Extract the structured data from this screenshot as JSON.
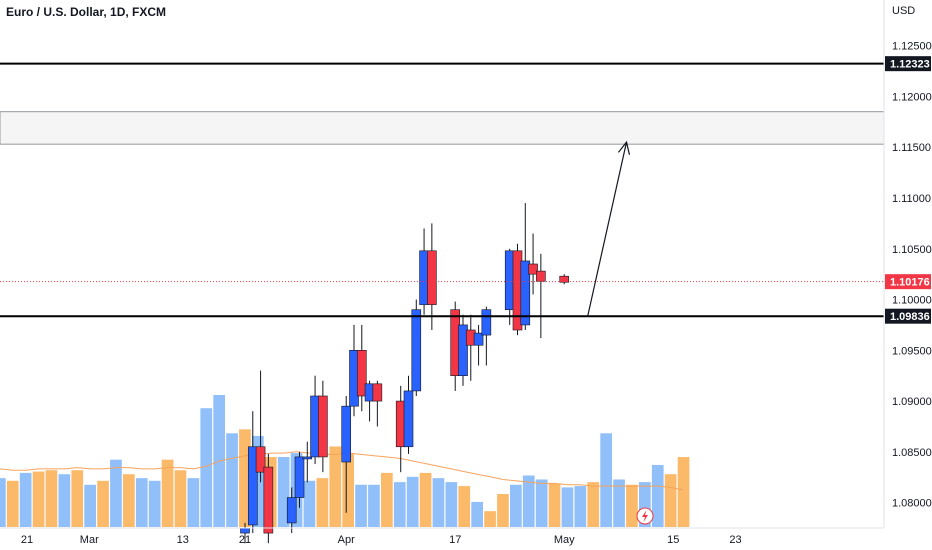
{
  "chart_data": {
    "type": "candlestick",
    "title": "Euro / U.S. Dollar, 1D, FXCM",
    "currency": "USD",
    "y_ticks": [
      "1.12500",
      "1.12000",
      "1.11500",
      "1.11000",
      "1.10500",
      "1.10000",
      "1.09500",
      "1.09000",
      "1.08500",
      "1.08000"
    ],
    "ylim": [
      1.0775,
      1.1295
    ],
    "x_ticks": [
      {
        "label": "21",
        "date": "2023-02-21"
      },
      {
        "label": "Mar",
        "date": "2023-03-01"
      },
      {
        "label": "13",
        "date": "2023-03-13"
      },
      {
        "label": "21",
        "date": "2023-03-21"
      },
      {
        "label": "Apr",
        "date": "2023-04-03"
      },
      {
        "label": "17",
        "date": "2023-04-17"
      },
      {
        "label": "May",
        "date": "2023-05-01"
      },
      {
        "label": "15",
        "date": "2023-05-15"
      },
      {
        "label": "23",
        "date": "2023-05-23"
      }
    ],
    "candles": [
      {
        "date": "2023-03-21",
        "open": 1.077,
        "high": 1.078,
        "low": 1.076,
        "close": 1.0775
      },
      {
        "date": "2023-03-22",
        "open": 1.0778,
        "high": 1.089,
        "low": 1.077,
        "close": 1.0855
      },
      {
        "date": "2023-03-23",
        "open": 1.0855,
        "high": 1.093,
        "low": 1.082,
        "close": 1.083
      },
      {
        "date": "2023-03-24",
        "open": 1.0835,
        "high": 1.0848,
        "low": 1.076,
        "close": 1.077
      },
      {
        "date": "2023-03-27",
        "open": 1.078,
        "high": 1.0815,
        "low": 1.077,
        "close": 1.0805
      },
      {
        "date": "2023-03-28",
        "open": 1.0805,
        "high": 1.085,
        "low": 1.0795,
        "close": 1.0845
      },
      {
        "date": "2023-03-29",
        "open": 1.0843,
        "high": 1.086,
        "low": 1.082,
        "close": 1.0845
      },
      {
        "date": "2023-03-30",
        "open": 1.0845,
        "high": 1.0925,
        "low": 1.0838,
        "close": 1.0905
      },
      {
        "date": "2023-03-31",
        "open": 1.0905,
        "high": 1.092,
        "low": 1.083,
        "close": 1.0845
      },
      {
        "date": "2023-04-03",
        "open": 1.084,
        "high": 1.0905,
        "low": 1.079,
        "close": 1.0895
      },
      {
        "date": "2023-04-04",
        "open": 1.0895,
        "high": 1.0975,
        "low": 1.0885,
        "close": 1.095
      },
      {
        "date": "2023-04-05",
        "open": 1.095,
        "high": 1.0975,
        "low": 1.089,
        "close": 1.0905
      },
      {
        "date": "2023-04-06",
        "open": 1.09,
        "high": 1.092,
        "low": 1.088,
        "close": 1.0917
      },
      {
        "date": "2023-04-07",
        "open": 1.0917,
        "high": 1.092,
        "low": 1.0875,
        "close": 1.09
      },
      {
        "date": "2023-04-10",
        "open": 1.09,
        "high": 1.0915,
        "low": 1.083,
        "close": 1.0855
      },
      {
        "date": "2023-04-11",
        "open": 1.0855,
        "high": 1.0925,
        "low": 1.0848,
        "close": 1.091
      },
      {
        "date": "2023-04-12",
        "open": 1.091,
        "high": 1.1,
        "low": 1.0905,
        "close": 1.099
      },
      {
        "date": "2023-04-13",
        "open": 1.0995,
        "high": 1.107,
        "low": 1.0985,
        "close": 1.1048
      },
      {
        "date": "2023-04-14",
        "open": 1.1048,
        "high": 1.1075,
        "low": 1.097,
        "close": 1.0995
      },
      {
        "date": "2023-04-17",
        "open": 1.099,
        "high": 1.0998,
        "low": 1.091,
        "close": 1.0925
      },
      {
        "date": "2023-04-18",
        "open": 1.0925,
        "high": 1.0985,
        "low": 1.0915,
        "close": 1.0975
      },
      {
        "date": "2023-04-19",
        "open": 1.097,
        "high": 1.0985,
        "low": 1.092,
        "close": 1.0955
      },
      {
        "date": "2023-04-20",
        "open": 1.0955,
        "high": 1.0975,
        "low": 1.0935,
        "close": 1.0967
      },
      {
        "date": "2023-04-21",
        "open": 1.0965,
        "high": 1.0993,
        "low": 1.0935,
        "close": 1.099
      },
      {
        "date": "2023-04-24",
        "open": 1.099,
        "high": 1.105,
        "low": 1.0975,
        "close": 1.1048
      },
      {
        "date": "2023-04-25",
        "open": 1.1048,
        "high": 1.1055,
        "low": 1.0965,
        "close": 1.097
      },
      {
        "date": "2023-04-26",
        "open": 1.0975,
        "high": 1.1095,
        "low": 1.097,
        "close": 1.1038
      },
      {
        "date": "2023-04-27",
        "open": 1.1035,
        "high": 1.1065,
        "low": 1.1005,
        "close": 1.1025
      },
      {
        "date": "2023-04-28",
        "open": 1.1028,
        "high": 1.1045,
        "low": 1.0962,
        "close": 1.1018
      },
      {
        "date": "2023-05-01",
        "open": 1.1023,
        "high": 1.1025,
        "low": 1.1015,
        "close": 1.1017
      }
    ],
    "volume_bars": [
      {
        "up": true,
        "level": 0.37
      },
      {
        "up": false,
        "level": 0.35
      },
      {
        "up": true,
        "level": 0.41
      },
      {
        "up": false,
        "level": 0.42
      },
      {
        "up": false,
        "level": 0.43
      },
      {
        "up": true,
        "level": 0.4
      },
      {
        "up": false,
        "level": 0.43
      },
      {
        "up": true,
        "level": 0.32
      },
      {
        "up": false,
        "level": 0.35
      },
      {
        "up": true,
        "level": 0.51
      },
      {
        "up": false,
        "level": 0.4
      },
      {
        "up": true,
        "level": 0.37
      },
      {
        "up": true,
        "level": 0.35
      },
      {
        "up": false,
        "level": 0.51
      },
      {
        "up": false,
        "level": 0.43
      },
      {
        "up": true,
        "level": 0.37
      },
      {
        "up": true,
        "level": 0.9
      },
      {
        "up": true,
        "level": 1.0
      },
      {
        "up": true,
        "level": 0.71
      },
      {
        "up": false,
        "level": 0.74
      },
      {
        "up": true,
        "level": 0.69
      },
      {
        "up": false,
        "level": 0.53
      },
      {
        "up": true,
        "level": 0.53
      },
      {
        "up": true,
        "level": 0.56
      },
      {
        "up": true,
        "level": 0.35
      },
      {
        "up": false,
        "level": 0.37
      },
      {
        "up": false,
        "level": 0.61
      },
      {
        "up": false,
        "level": 0.56
      },
      {
        "up": true,
        "level": 0.32
      },
      {
        "up": true,
        "level": 0.32
      },
      {
        "up": false,
        "level": 0.41
      },
      {
        "up": true,
        "level": 0.34
      },
      {
        "up": true,
        "level": 0.38
      },
      {
        "up": false,
        "level": 0.41
      },
      {
        "up": true,
        "level": 0.37
      },
      {
        "up": true,
        "level": 0.34
      },
      {
        "up": false,
        "level": 0.31
      },
      {
        "up": true,
        "level": 0.19
      },
      {
        "up": false,
        "level": 0.12
      },
      {
        "up": false,
        "level": 0.25
      },
      {
        "up": true,
        "level": 0.32
      },
      {
        "up": true,
        "level": 0.39
      },
      {
        "up": true,
        "level": 0.36
      },
      {
        "up": false,
        "level": 0.33
      },
      {
        "up": true,
        "level": 0.3
      },
      {
        "up": true,
        "level": 0.31
      },
      {
        "up": false,
        "level": 0.34
      },
      {
        "up": true,
        "level": 0.71
      },
      {
        "up": true,
        "level": 0.36
      },
      {
        "up": false,
        "level": 0.32
      },
      {
        "up": true,
        "level": 0.34
      },
      {
        "up": true,
        "level": 0.47
      },
      {
        "up": false,
        "level": 0.4
      },
      {
        "up": false,
        "level": 0.53
      }
    ],
    "volume_ma": [
      0.44,
      0.43,
      0.43,
      0.44,
      0.44,
      0.44,
      0.45,
      0.44,
      0.44,
      0.45,
      0.45,
      0.44,
      0.44,
      0.45,
      0.45,
      0.44,
      0.46,
      0.5,
      0.52,
      0.54,
      0.55,
      0.56,
      0.56,
      0.57,
      0.56,
      0.55,
      0.55,
      0.56,
      0.55,
      0.54,
      0.53,
      0.52,
      0.5,
      0.48,
      0.46,
      0.44,
      0.42,
      0.4,
      0.38,
      0.36,
      0.35,
      0.34,
      0.33,
      0.33,
      0.32,
      0.32,
      0.31,
      0.31,
      0.31,
      0.31,
      0.31,
      0.31,
      0.3,
      0.28
    ],
    "horizontal_levels": [
      {
        "price": 1.12323,
        "label": "1.12323",
        "color": "#000000"
      },
      {
        "price": 1.09836,
        "label": "1.09836",
        "color": "#000000"
      }
    ],
    "zone": {
      "top": 1.1185,
      "bottom": 1.1153
    },
    "top_line": 1.13,
    "last_price": {
      "price": 1.10176,
      "label": "1.10176",
      "color": "#f23645"
    },
    "projection_arrow": {
      "from": {
        "date": "2023-05-04",
        "price": 1.0983
      },
      "to": {
        "date": "2023-05-09",
        "price": 1.1155
      }
    },
    "colors": {
      "up": "#2962ff",
      "down": "#f23645",
      "volume_up": "#90bff9",
      "volume_down": "#faba6a",
      "volume_ma": "#f7a35c",
      "zone": "#f5f5f5",
      "grid": "#e0e3eb"
    }
  }
}
